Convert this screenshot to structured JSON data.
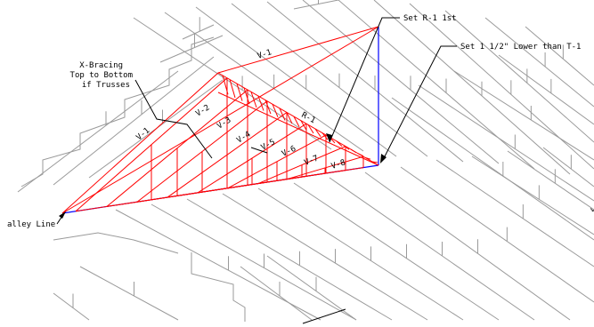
{
  "colors": {
    "background": "#ffffff",
    "truss": "#9a9a9a",
    "valley_frame": "#ff0000",
    "valley_line": "#0000ff",
    "leader": "#000000"
  },
  "callouts": {
    "set_r1": "Set R-1 1st",
    "set_lower": "Set 1 1/2\" Lower than T-1",
    "xbracing_1": "X-Bracing",
    "xbracing_2": "Top to Bottom",
    "xbracing_3": "if Trusses",
    "valley_line": "alley Line"
  },
  "frame_labels": {
    "v1_top": "V-1",
    "v1_left": "V-1",
    "v2": "V-2",
    "v3": "V-3",
    "v4": "V-4",
    "v5": "V-5",
    "v6": "V-6",
    "v7": "V-7",
    "v8": "V-8",
    "r1": "R-1"
  },
  "edge_glyph": "↘"
}
